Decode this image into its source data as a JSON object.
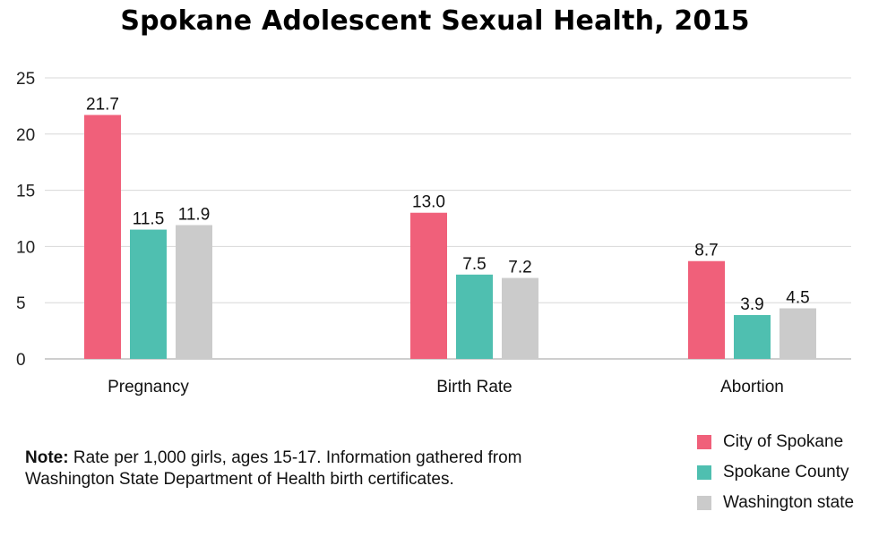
{
  "title": "Spokane Adolescent Sexual Health, 2015",
  "note": {
    "label": "Note:",
    "text": "Rate per 1,000 girls, ages 15-17. Information gathered from Washington State Department of Health birth certificates."
  },
  "chart_data": {
    "type": "bar",
    "title": "Spokane Adolescent Sexual Health, 2015",
    "xlabel": "",
    "ylabel": "",
    "categories": [
      "Pregnancy",
      "Birth Rate",
      "Abortion"
    ],
    "ylim": [
      0,
      25
    ],
    "yticks": [
      0,
      5,
      10,
      15,
      20,
      25
    ],
    "grid": true,
    "legend_position": "bottom-right",
    "series": [
      {
        "name": "City of Spokane",
        "color": "#f0607a",
        "values": [
          21.7,
          13.0,
          8.7
        ],
        "labels": [
          "21.7",
          "13.0",
          "8.7"
        ]
      },
      {
        "name": "Spokane County",
        "color": "#4fbfb0",
        "values": [
          11.5,
          7.5,
          3.9
        ],
        "labels": [
          "11.5",
          "7.5",
          "3.9"
        ]
      },
      {
        "name": "Washington state",
        "color": "#cbcbcb",
        "values": [
          11.9,
          7.2,
          4.5
        ],
        "labels": [
          "11.9",
          "7.2",
          "4.5"
        ]
      }
    ]
  },
  "colors": {
    "grid": "#d8d8d8",
    "axis": "#bdbdbd"
  }
}
